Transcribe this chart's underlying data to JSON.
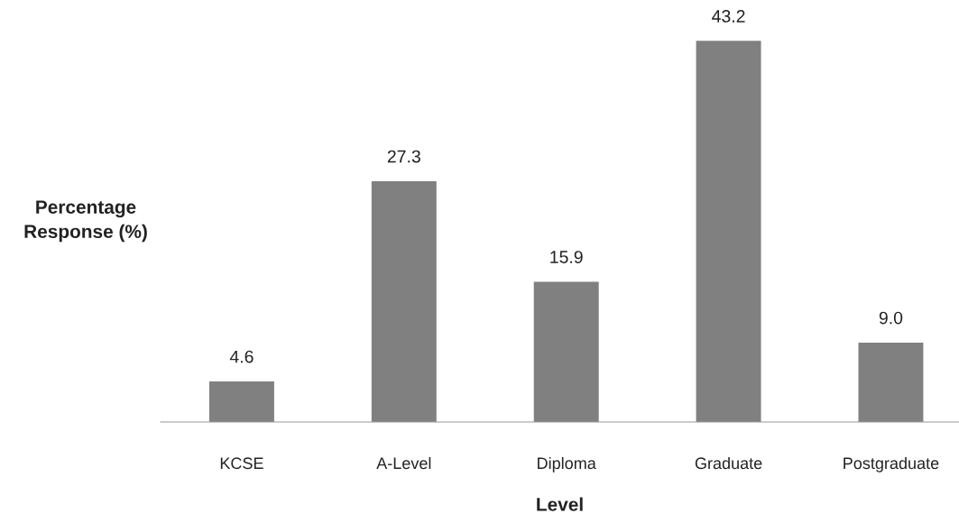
{
  "chart_data": {
    "type": "bar",
    "xlabel": "Level",
    "ylabel": "Percentage\nResponse (%)",
    "categories": [
      "KCSE",
      "A-Level",
      "Diploma",
      "Graduate",
      "Postgraduate"
    ],
    "values": [
      4.6,
      27.3,
      15.9,
      43.2,
      9.0
    ],
    "value_labels": [
      "4.6",
      "27.3",
      "15.9",
      "43.2",
      "9.0"
    ],
    "color": "#808080",
    "grid": false,
    "legend": false
  }
}
